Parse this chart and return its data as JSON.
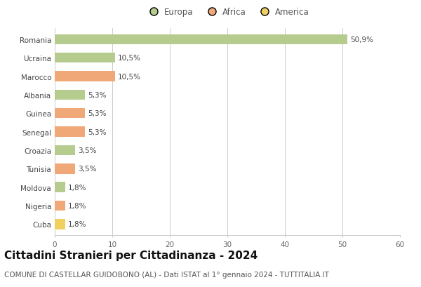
{
  "countries": [
    "Romania",
    "Ucraina",
    "Marocco",
    "Albania",
    "Guinea",
    "Senegal",
    "Croazia",
    "Tunisia",
    "Moldova",
    "Nigeria",
    "Cuba"
  ],
  "values": [
    50.9,
    10.5,
    10.5,
    5.3,
    5.3,
    5.3,
    3.5,
    3.5,
    1.8,
    1.8,
    1.8
  ],
  "labels": [
    "50,9%",
    "10,5%",
    "10,5%",
    "5,3%",
    "5,3%",
    "5,3%",
    "3,5%",
    "3,5%",
    "1,8%",
    "1,8%",
    "1,8%"
  ],
  "continents": [
    "Europa",
    "Europa",
    "Africa",
    "Europa",
    "Africa",
    "Africa",
    "Europa",
    "Africa",
    "Europa",
    "Africa",
    "America"
  ],
  "colors": {
    "Europa": "#b5cc8e",
    "Africa": "#f0a878",
    "America": "#f0d060"
  },
  "xlim": [
    0,
    60
  ],
  "xticks": [
    0,
    10,
    20,
    30,
    40,
    50,
    60
  ],
  "title": "Cittadini Stranieri per Cittadinanza - 2024",
  "subtitle": "COMUNE DI CASTELLAR GUIDOBONO (AL) - Dati ISTAT al 1° gennaio 2024 - TUTTITALIA.IT",
  "background_color": "#ffffff",
  "grid_color": "#cccccc",
  "bar_height": 0.55,
  "title_fontsize": 11,
  "subtitle_fontsize": 7.5,
  "label_fontsize": 7.5,
  "tick_fontsize": 7.5,
  "legend_fontsize": 8.5
}
